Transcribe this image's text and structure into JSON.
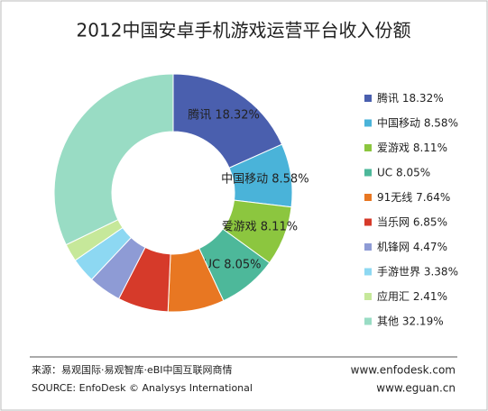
{
  "chart_data": {
    "type": "donut",
    "title": "2012中国安卓手机游戏运营平台收入份额",
    "categories": [
      "腾讯",
      "中国移动",
      "爱游戏",
      "UC",
      "91无线",
      "当乐网",
      "机锋网",
      "手游世界",
      "应用汇",
      "其他"
    ],
    "values": [
      18.32,
      8.58,
      8.11,
      8.05,
      7.64,
      6.85,
      4.47,
      3.38,
      2.41,
      32.19
    ],
    "value_labels": [
      "18.32%",
      "8.58%",
      "8.11%",
      "8.05%",
      "7.64%",
      "6.85%",
      "4.47%",
      "3.38%",
      "2.41%",
      "32.19%"
    ],
    "colors": [
      "#4a5fae",
      "#4ab3d9",
      "#8cc63f",
      "#4db89a",
      "#e87722",
      "#d63a2a",
      "#8e9bd5",
      "#8dd8f2",
      "#c6e89a",
      "#99dcc4"
    ],
    "legend": "right"
  },
  "footer": {
    "source_cn": "来源：易观国际·易观智库·eBI中国互联网商情",
    "source_en": "SOURCE: EnfoDesk © Analysys International",
    "site1": "www.enfodesk.com",
    "site2": "www.eguan.cn"
  }
}
